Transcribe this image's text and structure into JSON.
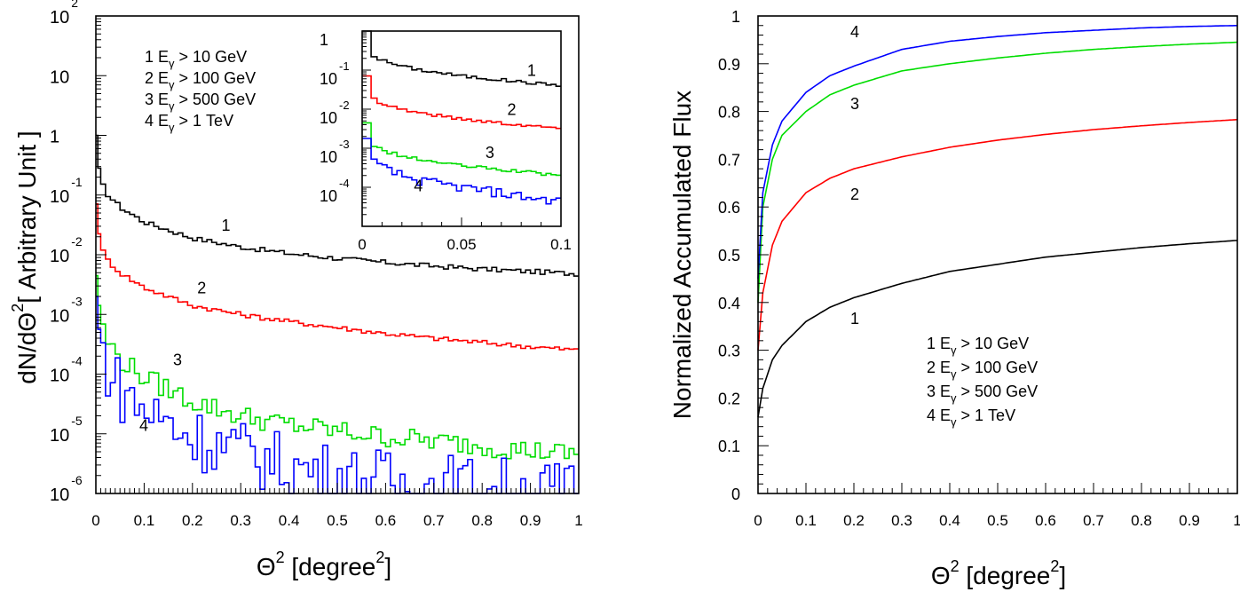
{
  "colors": {
    "1": "#000000",
    "2": "#ff0000",
    "3": "#00dd00",
    "4": "#0000ff"
  },
  "legend": [
    {
      "num": "1",
      "text": "E",
      "sub": "γ",
      "rest": " > 10 GeV"
    },
    {
      "num": "2",
      "text": "E",
      "sub": "γ",
      "rest": " > 100 GeV"
    },
    {
      "num": "3",
      "text": "E",
      "sub": "γ",
      "rest": " > 500 GeV"
    },
    {
      "num": "4",
      "text": "E",
      "sub": "γ",
      "rest": " > 1 TeV"
    }
  ],
  "chart_data": [
    {
      "type": "line",
      "panel": "left-main",
      "xlabel": {
        "base": "Θ",
        "sup": "2",
        "rest": " [degree",
        "sup2": "2",
        "end": "]"
      },
      "ylabel": {
        "pre": "dN/dΘ",
        "sup": "2",
        "post": "[ Arbitrary Unit ]"
      },
      "xlim": [
        0,
        1
      ],
      "ylim_log10": [
        -6,
        2
      ],
      "xticks": [
        "0",
        "0.1",
        "0.2",
        "0.3",
        "0.4",
        "0.5",
        "0.6",
        "0.7",
        "0.8",
        "0.9",
        "1"
      ],
      "yticks": [
        {
          "base": "10",
          "exp": "2"
        },
        {
          "base": "10",
          "exp": ""
        },
        {
          "base": "1",
          "exp": ""
        },
        {
          "base": "10",
          "exp": "-1"
        },
        {
          "base": "10",
          "exp": "-2"
        },
        {
          "base": "10",
          "exp": "-3"
        },
        {
          "base": "10",
          "exp": "-4"
        },
        {
          "base": "10",
          "exp": "-5"
        },
        {
          "base": "10",
          "exp": "-6"
        }
      ],
      "series": [
        {
          "name": "1",
          "x": [
            0,
            0.005,
            0.01,
            0.02,
            0.05,
            0.1,
            0.2,
            0.3,
            0.4,
            0.5,
            0.6,
            0.7,
            0.8,
            0.9,
            1.0
          ],
          "log10y": [
            0,
            -0.55,
            -0.75,
            -0.95,
            -1.2,
            -1.45,
            -1.72,
            -1.87,
            -1.98,
            -2.06,
            -2.13,
            -2.19,
            -2.24,
            -2.28,
            -2.32
          ]
        },
        {
          "name": "2",
          "x": [
            0,
            0.005,
            0.01,
            0.02,
            0.05,
            0.1,
            0.2,
            0.3,
            0.4,
            0.5,
            0.6,
            0.7,
            0.8,
            0.9,
            1.0
          ],
          "log10y": [
            -1.15,
            -1.65,
            -1.85,
            -2.05,
            -2.3,
            -2.55,
            -2.85,
            -3.0,
            -3.12,
            -3.22,
            -3.32,
            -3.4,
            -3.47,
            -3.54,
            -3.6
          ]
        },
        {
          "name": "3",
          "x": [
            0,
            0.005,
            0.01,
            0.02,
            0.05,
            0.1,
            0.2,
            0.3,
            0.4,
            0.5,
            0.6,
            0.7,
            0.8,
            0.9,
            1.0
          ],
          "log10y": [
            -2.35,
            -2.85,
            -3.1,
            -3.4,
            -3.75,
            -4.05,
            -4.45,
            -4.7,
            -4.85,
            -4.95,
            -5.05,
            -5.12,
            -5.2,
            -5.28,
            -5.35
          ]
        },
        {
          "name": "4",
          "x": [
            0,
            0.005,
            0.01,
            0.02,
            0.05,
            0.1,
            0.2,
            0.3,
            0.4,
            0.5,
            0.6,
            0.7,
            0.8,
            0.9,
            1.0
          ],
          "log10y": [
            -2.7,
            -3.25,
            -3.5,
            -3.8,
            -4.25,
            -4.6,
            -5.05,
            -5.3,
            -5.55,
            -5.7,
            -5.8,
            -5.85,
            -5.9,
            -5.95,
            -6.0
          ]
        }
      ],
      "labels": [
        {
          "text": "1",
          "x": 0.26,
          "log10y": -1.6
        },
        {
          "text": "2",
          "x": 0.21,
          "log10y": -2.65
        },
        {
          "text": "3",
          "x": 0.16,
          "log10y": -3.85
        },
        {
          "text": "4",
          "x": 0.09,
          "log10y": -4.95
        }
      ]
    },
    {
      "type": "line",
      "panel": "left-inset",
      "xlim": [
        0,
        0.1
      ],
      "ylim_log10": [
        -5,
        0
      ],
      "xticks": [
        "0",
        "0.05",
        "0.1"
      ],
      "yticks": [
        {
          "base": "1",
          "exp": ""
        },
        {
          "base": "10",
          "exp": "-1"
        },
        {
          "base": "10",
          "exp": "-2"
        },
        {
          "base": "10",
          "exp": "-3"
        },
        {
          "base": "10",
          "exp": "-4"
        }
      ],
      "series": [
        {
          "name": "1",
          "x": [
            0,
            0.005,
            0.01,
            0.02,
            0.03,
            0.05,
            0.07,
            0.09,
            0.1
          ],
          "log10y": [
            0,
            -0.6,
            -0.75,
            -0.9,
            -1.0,
            -1.15,
            -1.25,
            -1.35,
            -1.38
          ]
        },
        {
          "name": "2",
          "x": [
            0,
            0.005,
            0.01,
            0.02,
            0.03,
            0.05,
            0.07,
            0.09,
            0.1
          ],
          "log10y": [
            -1.15,
            -1.7,
            -1.85,
            -2.0,
            -2.1,
            -2.25,
            -2.35,
            -2.45,
            -2.48
          ]
        },
        {
          "name": "3",
          "x": [
            0,
            0.005,
            0.01,
            0.02,
            0.03,
            0.05,
            0.07,
            0.09,
            0.1
          ],
          "log10y": [
            -2.35,
            -2.9,
            -3.05,
            -3.2,
            -3.3,
            -3.45,
            -3.55,
            -3.65,
            -3.7
          ]
        },
        {
          "name": "4",
          "x": [
            0,
            0.005,
            0.01,
            0.02,
            0.03,
            0.05,
            0.07,
            0.09,
            0.1
          ],
          "log10y": [
            -2.75,
            -3.3,
            -3.5,
            -3.7,
            -3.85,
            -4.0,
            -4.15,
            -4.3,
            -4.35
          ]
        }
      ],
      "labels": [
        {
          "text": "1",
          "x": 0.083,
          "log10y": -1.15
        },
        {
          "text": "2",
          "x": 0.073,
          "log10y": -2.15
        },
        {
          "text": "3",
          "x": 0.062,
          "log10y": -3.25
        },
        {
          "text": "4",
          "x": 0.026,
          "log10y": -4.1
        }
      ]
    },
    {
      "type": "line",
      "panel": "right",
      "xlabel": {
        "base": "Θ",
        "sup": "2",
        "rest": " [degree",
        "sup2": "2",
        "end": "]"
      },
      "ylabel": "Normalized Accumulated Flux",
      "xlim": [
        0,
        1
      ],
      "ylim": [
        0,
        1
      ],
      "xticks": [
        "0",
        "0.1",
        "0.2",
        "0.3",
        "0.4",
        "0.5",
        "0.6",
        "0.7",
        "0.8",
        "0.9",
        "1"
      ],
      "yticks": [
        "0",
        "0.1",
        "0.2",
        "0.3",
        "0.4",
        "0.5",
        "0.6",
        "0.7",
        "0.8",
        "0.9",
        "1"
      ],
      "series": [
        {
          "name": "1",
          "x": [
            0,
            0.01,
            0.03,
            0.05,
            0.1,
            0.15,
            0.2,
            0.3,
            0.4,
            0.5,
            0.6,
            0.7,
            0.8,
            0.9,
            1.0
          ],
          "y": [
            0.16,
            0.22,
            0.28,
            0.31,
            0.36,
            0.39,
            0.41,
            0.44,
            0.465,
            0.48,
            0.495,
            0.505,
            0.515,
            0.523,
            0.53
          ]
        },
        {
          "name": "2",
          "x": [
            0,
            0.01,
            0.03,
            0.05,
            0.1,
            0.15,
            0.2,
            0.3,
            0.4,
            0.5,
            0.6,
            0.7,
            0.8,
            0.9,
            1.0
          ],
          "y": [
            0.3,
            0.42,
            0.52,
            0.57,
            0.63,
            0.66,
            0.68,
            0.705,
            0.725,
            0.74,
            0.752,
            0.762,
            0.77,
            0.777,
            0.783
          ]
        },
        {
          "name": "3",
          "x": [
            0,
            0.01,
            0.03,
            0.05,
            0.1,
            0.15,
            0.2,
            0.3,
            0.4,
            0.5,
            0.6,
            0.7,
            0.8,
            0.9,
            1.0
          ],
          "y": [
            0.4,
            0.6,
            0.7,
            0.75,
            0.8,
            0.835,
            0.855,
            0.885,
            0.9,
            0.912,
            0.922,
            0.93,
            0.936,
            0.941,
            0.945
          ]
        },
        {
          "name": "4",
          "x": [
            0,
            0.01,
            0.03,
            0.05,
            0.1,
            0.15,
            0.2,
            0.3,
            0.4,
            0.5,
            0.6,
            0.7,
            0.8,
            0.9,
            1.0
          ],
          "y": [
            0.45,
            0.63,
            0.73,
            0.78,
            0.84,
            0.875,
            0.895,
            0.93,
            0.947,
            0.957,
            0.965,
            0.97,
            0.975,
            0.978,
            0.98
          ]
        }
      ],
      "labels": [
        {
          "text": "1",
          "x": 0.2,
          "y": 0.37
        },
        {
          "text": "2",
          "x": 0.2,
          "y": 0.63
        },
        {
          "text": "3",
          "x": 0.2,
          "y": 0.82
        },
        {
          "text": "4",
          "x": 0.2,
          "y": 0.97
        }
      ]
    }
  ]
}
